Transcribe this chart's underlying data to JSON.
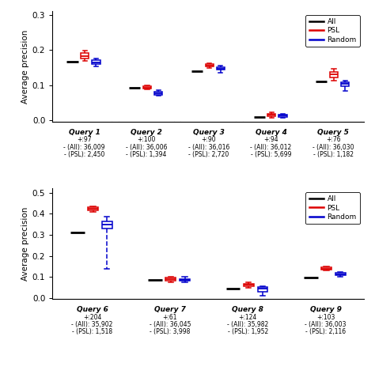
{
  "top": {
    "ylim": [
      -0.005,
      0.31
    ],
    "yticks": [
      0.0,
      0.1,
      0.2,
      0.3
    ],
    "ylabel": "Average precision",
    "queries": [
      "Query 1",
      "Query 2",
      "Query 3",
      "Query 4",
      "Query 5"
    ],
    "subtexts": [
      [
        "+:97",
        "- (All): 36,009",
        "- (PSL): 2,450"
      ],
      [
        "+:100",
        "- (All): 36,006",
        "- (PSL): 1,394"
      ],
      [
        "+:90",
        "- (All): 36,016",
        "- (PSL): 2,720"
      ],
      [
        "+:94",
        "- (All): 36,012",
        "- (PSL): 5,699"
      ],
      [
        "+:76",
        "- (All): 36,030",
        "- (PSL): 1,182"
      ]
    ],
    "all_vals": [
      0.167,
      0.093,
      0.14,
      0.01,
      0.11
    ],
    "psl_boxes": [
      {
        "med": 0.183,
        "q1": 0.175,
        "q3": 0.191,
        "whislo": 0.168,
        "whishi": 0.197
      },
      {
        "med": 0.093,
        "q1": 0.09,
        "q3": 0.096,
        "whislo": 0.088,
        "whishi": 0.1
      },
      {
        "med": 0.156,
        "q1": 0.152,
        "q3": 0.16,
        "whislo": 0.148,
        "whishi": 0.163
      },
      {
        "med": 0.015,
        "q1": 0.011,
        "q3": 0.019,
        "whislo": 0.007,
        "whishi": 0.023
      },
      {
        "med": 0.13,
        "q1": 0.121,
        "q3": 0.138,
        "whislo": 0.112,
        "whishi": 0.146
      }
    ],
    "rnd_boxes": [
      {
        "med": 0.165,
        "q1": 0.16,
        "q3": 0.17,
        "whislo": 0.152,
        "whishi": 0.175
      },
      {
        "med": 0.077,
        "q1": 0.073,
        "q3": 0.081,
        "whislo": 0.069,
        "whishi": 0.086
      },
      {
        "med": 0.147,
        "q1": 0.143,
        "q3": 0.151,
        "whislo": 0.136,
        "whishi": 0.155
      },
      {
        "med": 0.013,
        "q1": 0.01,
        "q3": 0.016,
        "whislo": 0.006,
        "whishi": 0.019
      },
      {
        "med": 0.103,
        "q1": 0.097,
        "q3": 0.109,
        "whislo": 0.084,
        "whishi": 0.113
      }
    ]
  },
  "bot": {
    "ylim": [
      -0.005,
      0.52
    ],
    "yticks": [
      0.0,
      0.1,
      0.2,
      0.3,
      0.4,
      0.5
    ],
    "ylabel": "Average precision",
    "queries": [
      "Query 6",
      "Query 7",
      "Query 8",
      "Query 9"
    ],
    "subtexts": [
      [
        "+:204",
        "- (All): 35,902",
        "- (PSL): 1,518"
      ],
      [
        "+:61",
        "- (All): 36,045",
        "- (PSL): 3,998"
      ],
      [
        "+:124",
        "- (All): 35,982",
        "- (PSL): 1,952"
      ],
      [
        "+:103",
        "- (All): 36,003",
        "- (PSL): 2,116"
      ]
    ],
    "all_vals": [
      0.31,
      0.085,
      0.047,
      0.098
    ],
    "psl_boxes": [
      {
        "med": 0.423,
        "q1": 0.415,
        "q3": 0.43,
        "whislo": 0.41,
        "whishi": 0.434
      },
      {
        "med": 0.09,
        "q1": 0.082,
        "q3": 0.099,
        "whislo": 0.077,
        "whishi": 0.103
      },
      {
        "med": 0.063,
        "q1": 0.057,
        "q3": 0.069,
        "whislo": 0.05,
        "whishi": 0.074
      },
      {
        "med": 0.14,
        "q1": 0.135,
        "q3": 0.146,
        "whislo": 0.13,
        "whishi": 0.15
      }
    ],
    "rnd_boxes": [
      {
        "med": 0.348,
        "q1": 0.33,
        "q3": 0.362,
        "whislo": 0.14,
        "whishi": 0.388
      },
      {
        "med": 0.086,
        "q1": 0.082,
        "q3": 0.091,
        "whislo": 0.077,
        "whishi": 0.103
      },
      {
        "med": 0.046,
        "q1": 0.03,
        "q3": 0.053,
        "whislo": 0.012,
        "whishi": 0.058
      },
      {
        "med": 0.113,
        "q1": 0.108,
        "q3": 0.119,
        "whislo": 0.102,
        "whishi": 0.125
      }
    ]
  },
  "colors": {
    "all": "#000000",
    "psl": "#dd0000",
    "rnd": "#0000cc"
  },
  "bg_color": "#ffffff"
}
